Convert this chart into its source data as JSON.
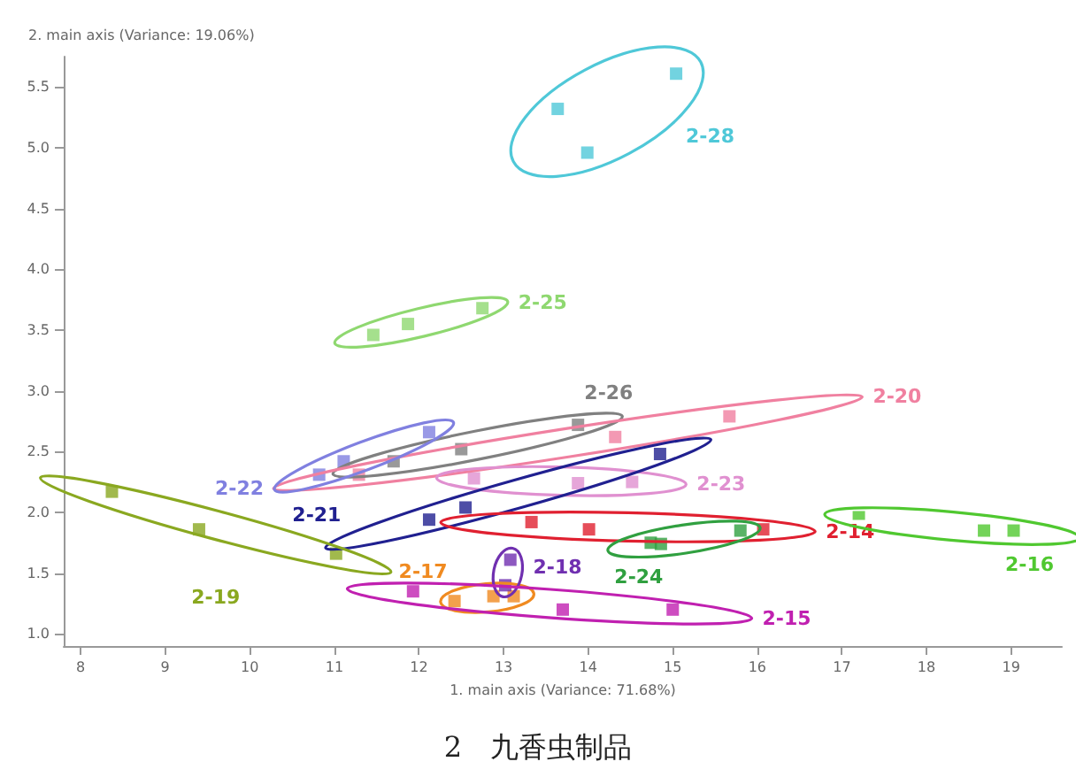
{
  "chart_data": {
    "type": "scatter",
    "title": "2　九香虫制品",
    "xlabel": "1. main axis (Variance: 71.68%)",
    "ylabel": "2. main axis (Variance: 19.06%)",
    "xlim": [
      7.8,
      19.6
    ],
    "ylim": [
      0.9,
      5.75
    ],
    "xticks": [
      8,
      9,
      10,
      11,
      12,
      13,
      14,
      15,
      16,
      17,
      18,
      19
    ],
    "yticks": [
      {
        "value": 1,
        "label": "1.0"
      },
      {
        "value": 1.5,
        "label": "1.5"
      },
      {
        "value": 2,
        "label": "2.0"
      },
      {
        "value": 2.5,
        "label": "2.5"
      },
      {
        "value": 3,
        "label": "3.0"
      },
      {
        "value": 3.5,
        "label": "3.5"
      },
      {
        "value": 4,
        "label": "4.0"
      },
      {
        "value": 4.5,
        "label": "4.5"
      },
      {
        "value": 5,
        "label": "5.0"
      },
      {
        "value": 5.5,
        "label": "5.5"
      }
    ],
    "grid": false,
    "legend": false,
    "marker": "square",
    "series": [
      {
        "name": "2-28",
        "color": "#4fc8d8",
        "x": [
          13.64,
          15.04,
          13.99
        ],
        "values": [
          5.32,
          5.61,
          4.96
        ]
      },
      {
        "name": "2-25",
        "color": "#8fd870",
        "x": [
          11.46,
          11.87,
          12.75
        ],
        "values": [
          3.46,
          3.55,
          3.68
        ]
      },
      {
        "name": "2-26",
        "color": "#808080",
        "x": [
          13.88,
          12.5,
          11.7
        ],
        "values": [
          2.72,
          2.52,
          2.42
        ]
      },
      {
        "name": "2-20",
        "color": "#f080a0",
        "x": [
          15.67,
          14.32,
          11.29
        ],
        "values": [
          2.79,
          2.62,
          2.31
        ]
      },
      {
        "name": "2-22",
        "color": "#8080e0",
        "x": [
          11.11,
          10.82,
          12.12
        ],
        "values": [
          2.42,
          2.31,
          2.66
        ]
      },
      {
        "name": "2-23",
        "color": "#e090d0",
        "x": [
          13.88,
          14.52,
          12.65
        ],
        "values": [
          2.24,
          2.25,
          2.28
        ]
      },
      {
        "name": "2-21",
        "color": "#202090",
        "x": [
          12.12,
          12.55,
          14.85
        ],
        "values": [
          1.94,
          2.04,
          2.48
        ]
      },
      {
        "name": "2-14",
        "color": "#e02030",
        "x": [
          13.33,
          14.01,
          16.07
        ],
        "values": [
          1.92,
          1.86,
          1.86
        ]
      },
      {
        "name": "2-24",
        "color": "#30a040",
        "x": [
          14.74,
          14.86,
          15.8
        ],
        "values": [
          1.75,
          1.74,
          1.85
        ]
      },
      {
        "name": "2-16",
        "color": "#50c830",
        "x": [
          17.2,
          18.68,
          19.03
        ],
        "values": [
          1.96,
          1.85,
          1.85
        ]
      },
      {
        "name": "2-19",
        "color": "#8aa820",
        "x": [
          8.37,
          9.4,
          11.02
        ],
        "values": [
          2.17,
          1.86,
          1.66
        ]
      },
      {
        "name": "2-17",
        "color": "#f08a20",
        "x": [
          12.42,
          12.88,
          13.12
        ],
        "values": [
          1.27,
          1.31,
          1.31
        ]
      },
      {
        "name": "2-18",
        "color": "#7030b0",
        "x": [
          13.08,
          13.02
        ],
        "values": [
          1.61,
          1.4
        ]
      },
      {
        "name": "2-15",
        "color": "#c020b0",
        "x": [
          11.93,
          13.7,
          15.0
        ],
        "values": [
          1.35,
          1.2,
          1.2
        ]
      }
    ]
  }
}
